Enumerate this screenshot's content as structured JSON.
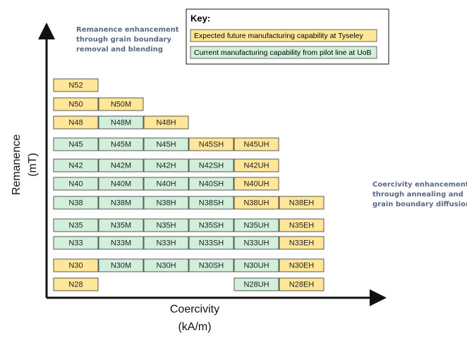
{
  "key": {
    "title": "Key:",
    "items": [
      {
        "label": "Expected future manufacturing capability at Tyseley",
        "color": "#ffe699"
      },
      {
        "label": "Current manufacturing capability from pilot line at UoB",
        "color": "#d2efdc"
      }
    ]
  },
  "axes": {
    "y_label": [
      "Remanence",
      "(mT)"
    ],
    "x_label": [
      "Coercivity",
      "(kA/m)"
    ]
  },
  "annotations": [
    {
      "lines": [
        "Remanence enhancement",
        "through grain boundary",
        "removal and blending"
      ]
    },
    {
      "lines": [
        "Coercivity enhancement",
        "through annealing and",
        "grain boundary diffusion"
      ]
    }
  ],
  "rows": [
    [
      {
        "label": "N52",
        "color": "#ffe699"
      }
    ],
    [
      {
        "label": "N50",
        "color": "#ffe699"
      },
      {
        "label": "N50M",
        "color": "#ffe699"
      }
    ],
    [
      {
        "label": "N48",
        "color": "#ffe699"
      },
      {
        "label": "N48M",
        "color": "#d2efdc"
      },
      {
        "label": "N48H",
        "color": "#ffe699"
      }
    ],
    [
      {
        "label": "N45",
        "color": "#d2efdc"
      },
      {
        "label": "N45M",
        "color": "#d2efdc"
      },
      {
        "label": "N45H",
        "color": "#d2efdc"
      },
      {
        "label": "N45SH",
        "color": "#ffe699"
      },
      {
        "label": "N45UH",
        "color": "#ffe699"
      }
    ],
    [
      {
        "label": "N42",
        "color": "#d2efdc"
      },
      {
        "label": "N42M",
        "color": "#d2efdc"
      },
      {
        "label": "N42H",
        "color": "#d2efdc"
      },
      {
        "label": "N42SH",
        "color": "#d2efdc"
      },
      {
        "label": "N42UH",
        "color": "#ffe699"
      }
    ],
    [
      {
        "label": "N40",
        "color": "#d2efdc"
      },
      {
        "label": "N40M",
        "color": "#d2efdc"
      },
      {
        "label": "N40H",
        "color": "#d2efdc"
      },
      {
        "label": "N40SH",
        "color": "#d2efdc"
      },
      {
        "label": "N40UH",
        "color": "#ffe699"
      }
    ],
    [
      {
        "label": "N38",
        "color": "#d2efdc"
      },
      {
        "label": "N38M",
        "color": "#d2efdc"
      },
      {
        "label": "N38H",
        "color": "#d2efdc"
      },
      {
        "label": "N38SH",
        "color": "#d2efdc"
      },
      {
        "label": "N38UH",
        "color": "#ffe699"
      },
      {
        "label": "N38EH",
        "color": "#ffe699"
      }
    ],
    [
      {
        "label": "N35",
        "color": "#d2efdc"
      },
      {
        "label": "N35M",
        "color": "#d2efdc"
      },
      {
        "label": "N35H",
        "color": "#d2efdc"
      },
      {
        "label": "N35SH",
        "color": "#d2efdc"
      },
      {
        "label": "N35UH",
        "color": "#d2efdc"
      },
      {
        "label": "N35EH",
        "color": "#ffe699"
      }
    ],
    [
      {
        "label": "N33",
        "color": "#d2efdc"
      },
      {
        "label": "N33M",
        "color": "#d2efdc"
      },
      {
        "label": "N33H",
        "color": "#d2efdc"
      },
      {
        "label": "N33SH",
        "color": "#d2efdc"
      },
      {
        "label": "N33UH",
        "color": "#d2efdc"
      },
      {
        "label": "N33EH",
        "color": "#ffe699"
      }
    ],
    [
      {
        "label": "N30",
        "color": "#ffe699"
      },
      {
        "label": "N30M",
        "color": "#d2efdc"
      },
      {
        "label": "N30H",
        "color": "#d2efdc"
      },
      {
        "label": "N30SH",
        "color": "#d2efdc"
      },
      {
        "label": "N30UH",
        "color": "#d2efdc"
      },
      {
        "label": "N30EH",
        "color": "#ffe699"
      }
    ],
    [
      {
        "label": "N28",
        "color": "#ffe699"
      },
      null,
      null,
      null,
      {
        "label": "N28UH",
        "color": "#d2efdc"
      },
      {
        "label": "N28EH",
        "color": "#ffe699"
      }
    ]
  ]
}
